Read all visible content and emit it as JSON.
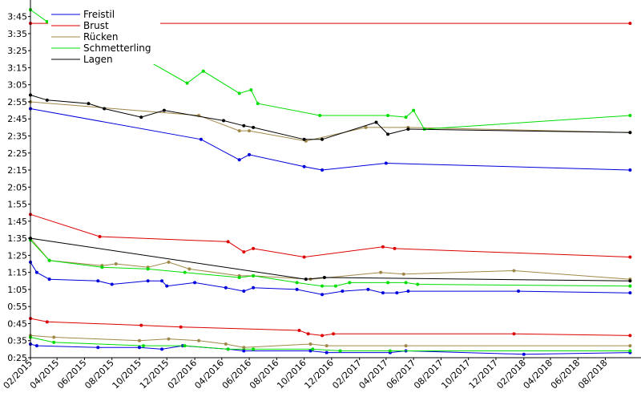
{
  "chart_data": {
    "type": "line",
    "xlim": [
      "2015-02-01",
      "2018-10-05"
    ],
    "ylim_seconds": [
      25,
      230
    ],
    "y_ticks": [
      "0:25",
      "0:35",
      "0:45",
      "0:55",
      "1:05",
      "1:15",
      "1:25",
      "1:35",
      "1:45",
      "1:55",
      "2:05",
      "2:15",
      "2:25",
      "2:35",
      "2:45",
      "2:55",
      "3:05",
      "3:15",
      "3:25",
      "3:35",
      "3:45"
    ],
    "x_ticks": [
      "02/2015",
      "04/2015",
      "06/2015",
      "08/2015",
      "10/2015",
      "12/2015",
      "02/2016",
      "04/2016",
      "06/2016",
      "08/2016",
      "10/2016",
      "12/2016",
      "02/2017",
      "04/2017",
      "06/2017",
      "08/2017",
      "10/2017",
      "12/2017",
      "02/2018",
      "04/2018",
      "06/2018",
      "08/2018"
    ],
    "grid": false,
    "legend_position": "top-left",
    "legend": [
      {
        "label": "Freistil",
        "color": "#0000dd"
      },
      {
        "label": "Brust",
        "color": "#dd0000"
      },
      {
        "label": "Rücken",
        "color": "#a0884a"
      },
      {
        "label": "Schmetterling",
        "color": "#00dd00"
      },
      {
        "label": "Lagen",
        "color": "#000000"
      }
    ],
    "series": [
      {
        "stroke": "#0000dd",
        "points": [
          [
            "2015-02-01",
            171
          ],
          [
            "2016-02-15",
            153
          ],
          [
            "2016-05-10",
            141
          ],
          [
            "2016-06-01",
            144
          ],
          [
            "2016-10-01",
            137
          ],
          [
            "2016-11-10",
            135
          ],
          [
            "2017-04-01",
            139
          ],
          [
            "2018-09-25",
            135
          ]
        ]
      },
      {
        "stroke": "#0000dd",
        "points": [
          [
            "2015-02-01",
            81
          ],
          [
            "2015-02-15",
            75
          ],
          [
            "2015-03-15",
            71
          ],
          [
            "2015-07-01",
            70
          ],
          [
            "2015-08-01",
            68
          ],
          [
            "2015-10-20",
            70
          ],
          [
            "2015-11-20",
            70
          ],
          [
            "2015-12-01",
            67
          ],
          [
            "2016-02-01",
            69
          ],
          [
            "2016-04-10",
            66
          ],
          [
            "2016-05-20",
            64
          ],
          [
            "2016-06-10",
            66
          ],
          [
            "2016-09-15",
            65
          ],
          [
            "2016-11-10",
            62
          ],
          [
            "2016-12-25",
            64
          ],
          [
            "2017-02-20",
            65
          ],
          [
            "2017-03-25",
            63
          ],
          [
            "2017-04-25",
            63
          ],
          [
            "2017-05-20",
            64
          ],
          [
            "2018-01-20",
            64
          ],
          [
            "2018-09-25",
            63
          ]
        ]
      },
      {
        "stroke": "#0000dd",
        "points": [
          [
            "2015-02-01",
            33
          ],
          [
            "2015-02-15",
            32
          ],
          [
            "2015-07-01",
            31
          ],
          [
            "2015-10-01",
            31
          ],
          [
            "2015-11-20",
            30
          ],
          [
            "2016-01-05",
            32
          ],
          [
            "2016-04-15",
            30
          ],
          [
            "2016-05-20",
            29
          ],
          [
            "2016-10-15",
            29
          ],
          [
            "2016-11-20",
            28
          ],
          [
            "2017-04-10",
            28
          ],
          [
            "2017-05-15",
            29
          ],
          [
            "2018-02-01",
            27
          ],
          [
            "2018-09-25",
            28
          ]
        ]
      },
      {
        "stroke": "#dd0000",
        "points": [
          [
            "2015-02-01",
            221
          ],
          [
            "2018-09-25",
            221
          ]
        ]
      },
      {
        "stroke": "#dd0000",
        "points": [
          [
            "2015-02-01",
            109
          ],
          [
            "2015-07-05",
            96
          ],
          [
            "2016-04-15",
            93
          ],
          [
            "2016-05-20",
            87
          ],
          [
            "2016-06-10",
            89
          ],
          [
            "2016-10-01",
            84
          ],
          [
            "2017-03-25",
            90
          ],
          [
            "2017-04-20",
            89
          ],
          [
            "2018-09-25",
            84
          ]
        ]
      },
      {
        "stroke": "#dd0000",
        "points": [
          [
            "2015-02-01",
            48
          ],
          [
            "2015-03-10",
            46
          ],
          [
            "2015-10-05",
            44
          ],
          [
            "2016-01-01",
            43
          ],
          [
            "2016-09-20",
            41
          ],
          [
            "2016-10-10",
            39
          ],
          [
            "2016-11-10",
            38
          ],
          [
            "2016-12-05",
            39
          ],
          [
            "2018-01-10",
            39
          ],
          [
            "2018-09-25",
            38
          ]
        ]
      },
      {
        "stroke": "#a0884a",
        "points": [
          [
            "2015-02-01",
            175
          ],
          [
            "2016-02-10",
            167
          ],
          [
            "2016-05-10",
            158
          ],
          [
            "2016-06-01",
            158
          ],
          [
            "2016-10-05",
            152
          ],
          [
            "2017-02-15",
            160
          ],
          [
            "2017-05-20",
            160
          ],
          [
            "2018-09-25",
            157
          ]
        ]
      },
      {
        "stroke": "#a0884a",
        "points": [
          [
            "2015-02-01",
            95
          ],
          [
            "2015-03-15",
            82
          ],
          [
            "2015-07-10",
            79
          ],
          [
            "2015-08-10",
            80
          ],
          [
            "2015-10-20",
            78
          ],
          [
            "2015-12-05",
            81
          ],
          [
            "2016-01-20",
            77
          ],
          [
            "2016-05-10",
            73
          ],
          [
            "2016-06-10",
            73
          ],
          [
            "2016-10-15",
            71
          ],
          [
            "2017-03-20",
            75
          ],
          [
            "2017-05-10",
            74
          ],
          [
            "2018-01-10",
            76
          ],
          [
            "2018-09-25",
            71
          ]
        ]
      },
      {
        "stroke": "#a0884a",
        "points": [
          [
            "2015-02-01",
            38
          ],
          [
            "2015-03-25",
            37
          ],
          [
            "2015-10-01",
            35
          ],
          [
            "2015-12-05",
            36
          ],
          [
            "2016-02-10",
            35
          ],
          [
            "2016-04-10",
            33
          ],
          [
            "2016-05-20",
            31
          ],
          [
            "2016-10-15",
            33
          ],
          [
            "2016-11-20",
            32
          ],
          [
            "2017-05-15",
            32
          ],
          [
            "2018-09-25",
            32
          ]
        ]
      },
      {
        "stroke": "#00dd00",
        "points": [
          [
            "2015-02-01",
            229
          ],
          [
            "2015-03-10",
            222
          ],
          [
            "2015-09-10",
            205
          ],
          [
            "2016-01-15",
            186
          ],
          [
            "2016-02-20",
            193
          ],
          [
            "2016-05-10",
            180
          ],
          [
            "2016-06-05",
            182
          ],
          [
            "2016-06-20",
            174
          ],
          [
            "2016-11-05",
            167
          ],
          [
            "2017-04-05",
            167
          ],
          [
            "2017-05-15",
            166
          ],
          [
            "2017-06-01",
            170
          ],
          [
            "2017-06-25",
            159
          ],
          [
            "2018-09-25",
            167
          ]
        ]
      },
      {
        "stroke": "#00dd00",
        "points": [
          [
            "2015-02-01",
            94
          ],
          [
            "2015-03-15",
            82
          ],
          [
            "2015-07-10",
            78
          ],
          [
            "2015-10-20",
            77
          ],
          [
            "2016-01-10",
            75
          ],
          [
            "2016-05-10",
            72
          ],
          [
            "2016-06-10",
            73
          ],
          [
            "2016-09-15",
            69
          ],
          [
            "2016-11-10",
            67
          ],
          [
            "2016-12-10",
            67
          ],
          [
            "2017-01-10",
            69
          ],
          [
            "2017-04-05",
            69
          ],
          [
            "2017-05-15",
            69
          ],
          [
            "2017-06-10",
            68
          ],
          [
            "2018-09-25",
            67
          ]
        ]
      },
      {
        "stroke": "#00dd00",
        "points": [
          [
            "2015-02-01",
            37
          ],
          [
            "2015-03-25",
            34
          ],
          [
            "2015-10-10",
            32
          ],
          [
            "2016-01-10",
            32
          ],
          [
            "2016-04-15",
            30
          ],
          [
            "2016-06-10",
            30
          ],
          [
            "2016-10-20",
            30
          ],
          [
            "2016-12-20",
            29
          ],
          [
            "2017-04-10",
            29
          ],
          [
            "2018-09-25",
            29
          ]
        ]
      },
      {
        "stroke": "#000000",
        "points": [
          [
            "2015-02-01",
            179
          ],
          [
            "2015-03-10",
            176
          ],
          [
            "2015-06-10",
            174
          ],
          [
            "2015-07-15",
            171
          ],
          [
            "2015-10-05",
            166
          ],
          [
            "2015-11-25",
            170
          ],
          [
            "2016-04-05",
            164
          ],
          [
            "2016-05-20",
            161
          ],
          [
            "2016-06-10",
            160
          ],
          [
            "2016-10-01",
            153
          ],
          [
            "2016-11-10",
            153
          ],
          [
            "2017-03-10",
            163
          ],
          [
            "2017-04-05",
            156
          ],
          [
            "2017-05-20",
            159
          ],
          [
            "2018-09-25",
            157
          ]
        ]
      },
      {
        "stroke": "#000000",
        "points": [
          [
            "2015-02-01",
            95
          ],
          [
            "2016-10-05",
            71
          ],
          [
            "2016-11-15",
            72
          ],
          [
            "2018-09-25",
            70
          ]
        ]
      }
    ]
  }
}
